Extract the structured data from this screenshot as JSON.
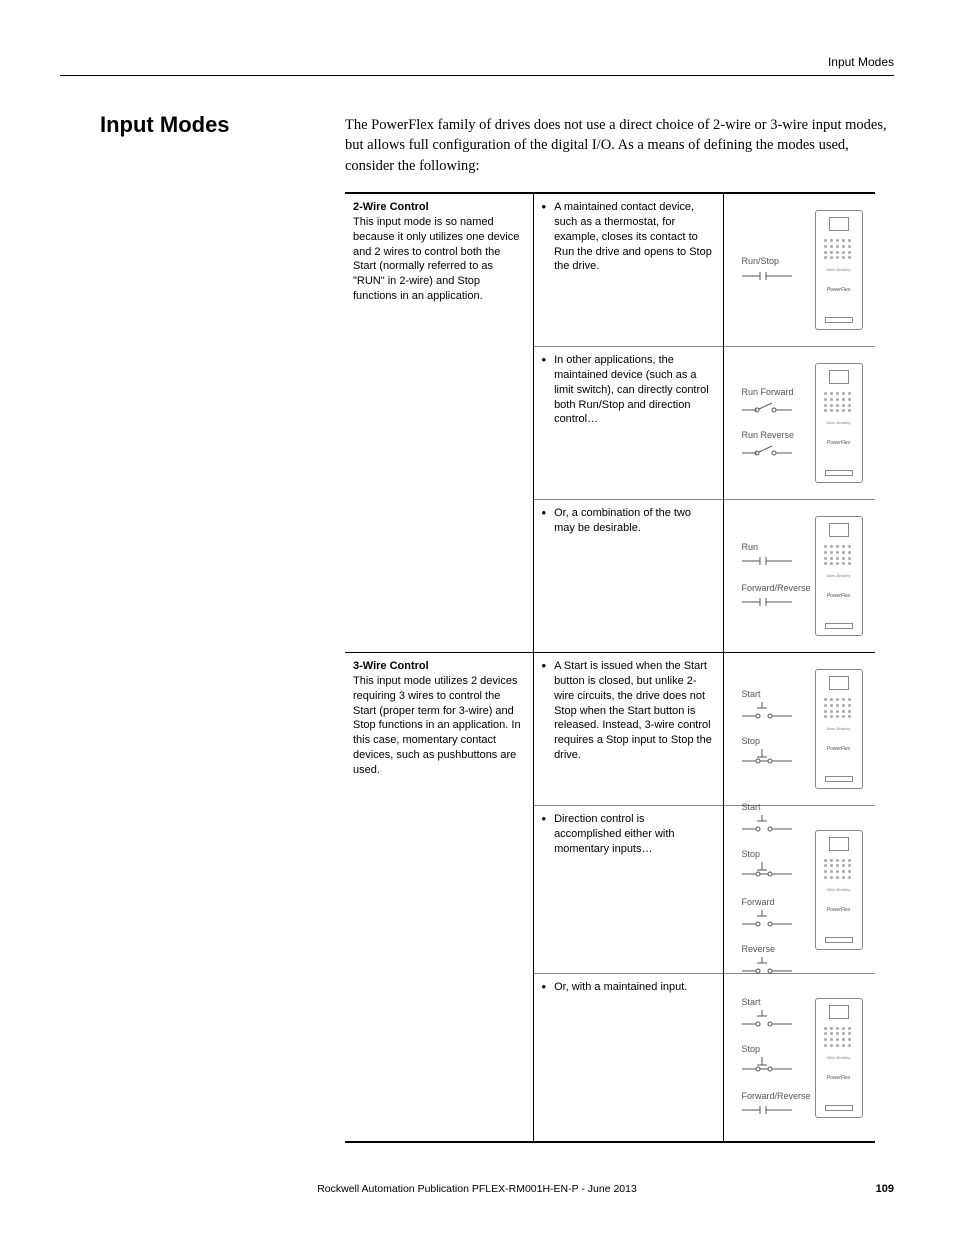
{
  "header": {
    "right": "Input Modes"
  },
  "section_title": "Input Modes",
  "intro": "The PowerFlex family of drives does not use a direct choice of 2-wire or 3-wire input modes, but allows full configuration of the digital I/O. As a means of defining the modes used, consider the following:",
  "rows": [
    {
      "left_title": "2-Wire Control",
      "left_body": "This input mode is so named because it only utilizes one device and 2 wires to control both the Start (normally referred to as \"RUN\" in 2-wire) and Stop functions in an application.",
      "bullet": "A maintained contact device, such as a thermostat, for example, closes its contact to Run the drive and opens to Stop the drive.",
      "signals": [
        "Run/Stop"
      ],
      "symbols": [
        "maintained"
      ]
    },
    {
      "left_title": "",
      "left_body": "",
      "bullet": "In other applications, the maintained device (such as a limit switch), can directly control both Run/Stop and direction control…",
      "signals": [
        "Run Forward",
        "Run Reverse"
      ],
      "symbols": [
        "limit",
        "limit"
      ]
    },
    {
      "left_title": "",
      "left_body": "",
      "bullet": "Or, a combination of the two may be desirable.",
      "signals": [
        "Run",
        "Forward/Reverse"
      ],
      "symbols": [
        "maintained",
        "maintained"
      ]
    },
    {
      "left_title": "3-Wire Control",
      "left_body": "This input mode utilizes 2 devices requiring 3 wires to control the Start (proper term for 3-wire) and Stop functions in an application. In this case, momentary contact devices, such as pushbuttons are used.",
      "bullet": "A Start is issued when the Start button is closed, but unlike 2-wire circuits, the drive does not Stop when the Start button is released. Instead, 3-wire control requires a Stop input to Stop the drive.",
      "signals": [
        "Start",
        "Stop"
      ],
      "symbols": [
        "momentary-no",
        "momentary-nc"
      ]
    },
    {
      "left_title": "",
      "left_body": "",
      "bullet": "Direction control is accomplished either with momentary inputs…",
      "signals": [
        "Start",
        "Stop",
        "Forward",
        "Reverse"
      ],
      "symbols": [
        "momentary-no",
        "momentary-nc",
        "momentary-no",
        "momentary-no"
      ]
    },
    {
      "left_title": "",
      "left_body": "",
      "bullet": "Or, with a maintained input.",
      "signals": [
        "Start",
        "Stop",
        "Forward/Reverse"
      ],
      "symbols": [
        "momentary-no",
        "momentary-nc",
        "maintained"
      ]
    }
  ],
  "drive": {
    "brand": "Allen-Bradley",
    "model": "PowerFlex"
  },
  "footer": "Rockwell Automation Publication PFLEX-RM001H-EN-P - June 2013",
  "page": "109"
}
